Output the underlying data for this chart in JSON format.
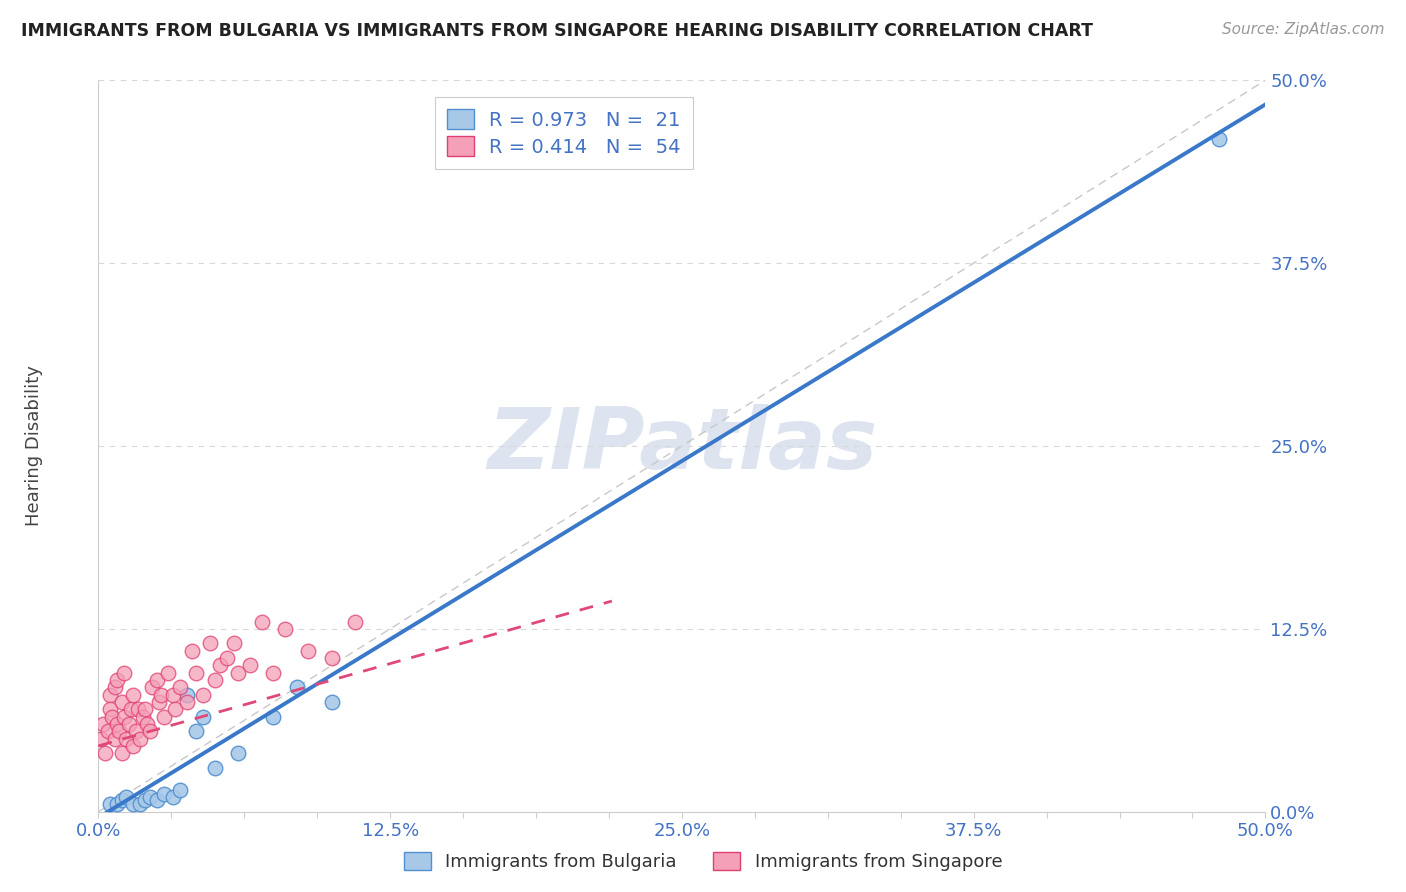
{
  "title": "IMMIGRANTS FROM BULGARIA VS IMMIGRANTS FROM SINGAPORE HEARING DISABILITY CORRELATION CHART",
  "source": "Source: ZipAtlas.com",
  "xlabel_bottom": "Immigrants from Bulgaria",
  "xlabel_top": "Immigrants from Singapore",
  "ylabel": "Hearing Disability",
  "watermark": "ZIPatlas",
  "legend_r_bulgaria": "R = 0.973",
  "legend_n_bulgaria": "N =  21",
  "legend_r_singapore": "R = 0.414",
  "legend_n_singapore": "N =  54",
  "xlim": [
    0.0,
    0.5
  ],
  "ylim": [
    0.0,
    0.5
  ],
  "ytick_vals": [
    0.0,
    0.125,
    0.25,
    0.375,
    0.5
  ],
  "ytick_labels": [
    "0.0%",
    "12.5%",
    "25.0%",
    "37.5%",
    "50.0%"
  ],
  "xtick_vals": [
    0.0,
    0.03125,
    0.0625,
    0.09375,
    0.125,
    0.15625,
    0.1875,
    0.21875,
    0.25,
    0.28125,
    0.3125,
    0.34375,
    0.375,
    0.40625,
    0.4375,
    0.46875,
    0.5
  ],
  "color_bulgaria": "#a8c8e8",
  "color_singapore": "#f4a0b8",
  "color_edge_bulgaria": "#5090d0",
  "color_edge_singapore": "#e04070",
  "color_line_bulgaria": "#3a78c9",
  "color_line_singapore": "#e04878",
  "color_diagonal": "#c8c8c8",
  "color_text_blue": "#4472c4",
  "color_title": "#222222",
  "color_source": "#999999",
  "color_watermark": "#dde4f0",
  "color_grid": "#d8d8d8",
  "bulgaria_x": [
    0.005,
    0.008,
    0.01,
    0.012,
    0.015,
    0.018,
    0.02,
    0.022,
    0.025,
    0.028,
    0.032,
    0.035,
    0.038,
    0.042,
    0.045,
    0.05,
    0.06,
    0.075,
    0.085,
    0.1,
    0.48
  ],
  "bulgaria_y": [
    0.005,
    0.005,
    0.008,
    0.01,
    0.005,
    0.005,
    0.008,
    0.01,
    0.008,
    0.012,
    0.01,
    0.015,
    0.08,
    0.055,
    0.065,
    0.03,
    0.04,
    0.065,
    0.085,
    0.075,
    0.46
  ],
  "singapore_x": [
    0.001,
    0.002,
    0.003,
    0.004,
    0.005,
    0.005,
    0.006,
    0.007,
    0.007,
    0.008,
    0.008,
    0.009,
    0.01,
    0.01,
    0.011,
    0.011,
    0.012,
    0.013,
    0.014,
    0.015,
    0.015,
    0.016,
    0.017,
    0.018,
    0.019,
    0.02,
    0.021,
    0.022,
    0.023,
    0.025,
    0.026,
    0.027,
    0.028,
    0.03,
    0.032,
    0.033,
    0.035,
    0.038,
    0.04,
    0.042,
    0.045,
    0.048,
    0.05,
    0.052,
    0.055,
    0.058,
    0.06,
    0.065,
    0.07,
    0.075,
    0.08,
    0.09,
    0.1,
    0.11
  ],
  "singapore_y": [
    0.05,
    0.06,
    0.04,
    0.055,
    0.08,
    0.07,
    0.065,
    0.05,
    0.085,
    0.06,
    0.09,
    0.055,
    0.04,
    0.075,
    0.065,
    0.095,
    0.05,
    0.06,
    0.07,
    0.045,
    0.08,
    0.055,
    0.07,
    0.05,
    0.065,
    0.07,
    0.06,
    0.055,
    0.085,
    0.09,
    0.075,
    0.08,
    0.065,
    0.095,
    0.08,
    0.07,
    0.085,
    0.075,
    0.11,
    0.095,
    0.08,
    0.115,
    0.09,
    0.1,
    0.105,
    0.115,
    0.095,
    0.1,
    0.13,
    0.095,
    0.125,
    0.11,
    0.105,
    0.13
  ],
  "b_slope": 0.975,
  "b_intercept": -0.004,
  "s_slope": 0.45,
  "s_intercept": 0.045,
  "s_line_xmax": 0.22
}
